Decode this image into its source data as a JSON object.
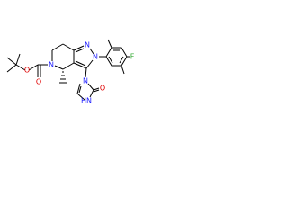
{
  "labels": [
    "O",
    "O",
    "N",
    "N",
    "N",
    "F",
    "N",
    "O",
    "HN"
  ]
}
